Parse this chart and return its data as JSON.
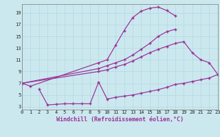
{
  "xlabel": "Windchill (Refroidissement éolien,°C)",
  "bg_color": "#cce8ef",
  "grid_color": "#b0d8e0",
  "line_color": "#993399",
  "line1_x": [
    0,
    1,
    9,
    10,
    11,
    12,
    13,
    14,
    15,
    16,
    17,
    18
  ],
  "line1_y": [
    7.0,
    6.5,
    10.5,
    11.0,
    13.5,
    16.0,
    18.2,
    19.3,
    19.8,
    20.0,
    19.4,
    18.5
  ],
  "line2_x": [
    0,
    9,
    10,
    11,
    12,
    13,
    14,
    15,
    16,
    17,
    18
  ],
  "line2_y": [
    7.0,
    9.5,
    10.0,
    10.5,
    11.0,
    11.8,
    12.8,
    13.8,
    15.0,
    15.8,
    16.2
  ],
  "line3_x": [
    0,
    9,
    10,
    11,
    12,
    13,
    14,
    15,
    16,
    17,
    18,
    19,
    20,
    21,
    22,
    23
  ],
  "line3_y": [
    7.0,
    9.0,
    9.3,
    9.8,
    10.2,
    10.8,
    11.5,
    12.2,
    12.8,
    13.3,
    13.8,
    14.1,
    12.2,
    11.0,
    10.5,
    8.5
  ],
  "line4_x": [
    2,
    3,
    4,
    5,
    6,
    7,
    8,
    9,
    10,
    11,
    12,
    13,
    14,
    15,
    16,
    17,
    18,
    19,
    20,
    21,
    22,
    23
  ],
  "line4_y": [
    6.0,
    3.3,
    3.4,
    3.5,
    3.5,
    3.5,
    3.5,
    7.2,
    4.3,
    4.6,
    4.8,
    5.0,
    5.3,
    5.6,
    5.9,
    6.3,
    6.8,
    7.0,
    7.3,
    7.6,
    7.9,
    8.5
  ],
  "xlim": [
    0,
    23
  ],
  "ylim": [
    2.5,
    20.5
  ],
  "yticks": [
    3,
    5,
    7,
    9,
    11,
    13,
    15,
    17,
    19
  ]
}
